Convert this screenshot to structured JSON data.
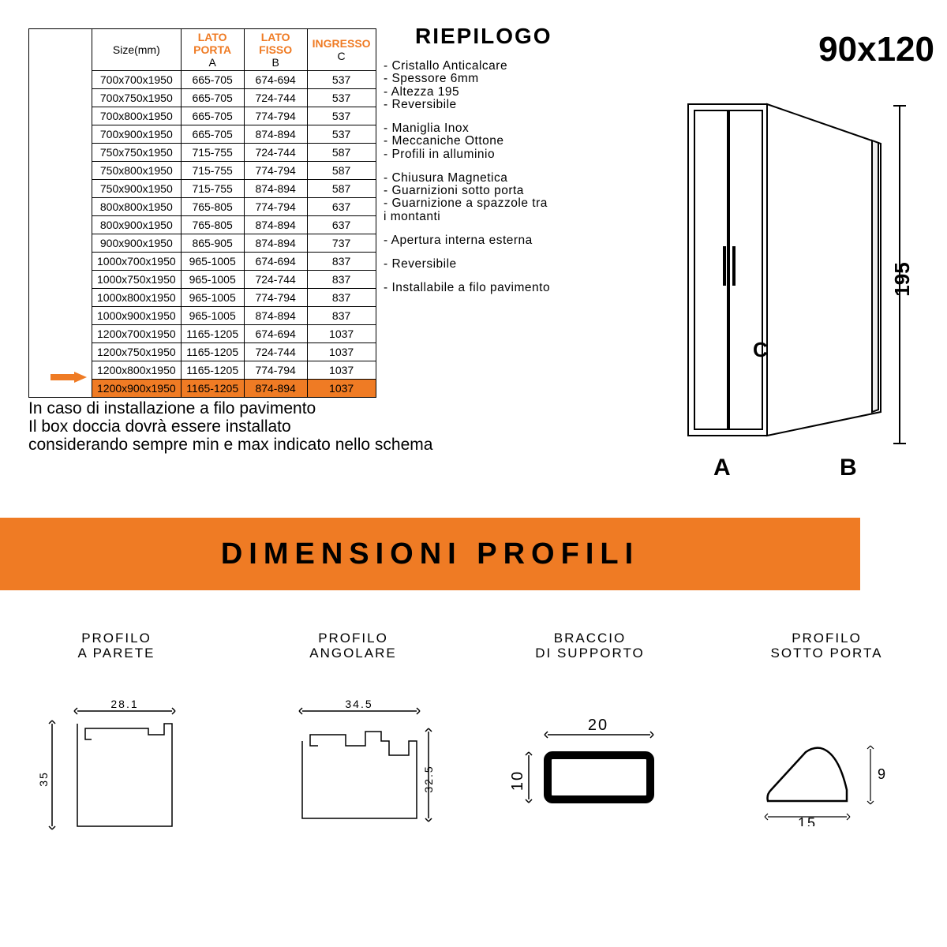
{
  "product_dimension": "90x120",
  "table": {
    "headers": {
      "size": "Size(mm)",
      "a_top": "LATO PORTA",
      "a_sub": "A",
      "b_top": "LATO FISSO",
      "b_sub": "B",
      "c_top": "INGRESSO",
      "c_sub": "C"
    },
    "rows": [
      {
        "size": "700x700x1950",
        "a": "665-705",
        "b": "674-694",
        "c": "537"
      },
      {
        "size": "700x750x1950",
        "a": "665-705",
        "b": "724-744",
        "c": "537"
      },
      {
        "size": "700x800x1950",
        "a": "665-705",
        "b": "774-794",
        "c": "537"
      },
      {
        "size": "700x900x1950",
        "a": "665-705",
        "b": "874-894",
        "c": "537"
      },
      {
        "size": "750x750x1950",
        "a": "715-755",
        "b": "724-744",
        "c": "587"
      },
      {
        "size": "750x800x1950",
        "a": "715-755",
        "b": "774-794",
        "c": "587"
      },
      {
        "size": "750x900x1950",
        "a": "715-755",
        "b": "874-894",
        "c": "587"
      },
      {
        "size": "800x800x1950",
        "a": "765-805",
        "b": "774-794",
        "c": "637"
      },
      {
        "size": "800x900x1950",
        "a": "765-805",
        "b": "874-894",
        "c": "637"
      },
      {
        "size": "900x900x1950",
        "a": "865-905",
        "b": "874-894",
        "c": "737"
      },
      {
        "size": "1000x700x1950",
        "a": "965-1005",
        "b": "674-694",
        "c": "837"
      },
      {
        "size": "1000x750x1950",
        "a": "965-1005",
        "b": "724-744",
        "c": "837"
      },
      {
        "size": "1000x800x1950",
        "a": "965-1005",
        "b": "774-794",
        "c": "837"
      },
      {
        "size": "1000x900x1950",
        "a": "965-1005",
        "b": "874-894",
        "c": "837"
      },
      {
        "size": "1200x700x1950",
        "a": "1165-1205",
        "b": "674-694",
        "c": "1037"
      },
      {
        "size": "1200x750x1950",
        "a": "1165-1205",
        "b": "724-744",
        "c": "1037"
      },
      {
        "size": "1200x800x1950",
        "a": "1165-1205",
        "b": "774-794",
        "c": "1037"
      },
      {
        "size": "1200x900x1950",
        "a": "1165-1205",
        "b": "874-894",
        "c": "1037"
      }
    ],
    "highlight_index": 17
  },
  "summary": {
    "title": "RIEPILOGO",
    "groups": [
      [
        "Cristallo Anticalcare",
        "Spessore 6mm",
        "Altezza 195",
        "Reversibile"
      ],
      [
        "Maniglia Inox",
        "Meccaniche Ottone",
        "Profili in alluminio"
      ],
      [
        "Chiusura Magnetica",
        "Guarnizioni sotto porta",
        "Guarnizione a spazzole tra"
      ],
      [
        "Apertura interna esterna"
      ],
      [
        "Reversibile"
      ],
      [
        "Installabile a filo pavimento"
      ]
    ],
    "extra_line": "i montanti"
  },
  "diagram": {
    "height_label": "195",
    "label_a": "A",
    "label_b": "B",
    "label_c": "C"
  },
  "footnote": [
    "In caso di installazione a filo pavimento",
    "Il box doccia dovrà essere installato",
    "considerando sempre min e max indicato nello schema"
  ],
  "banner": "DIMENSIONI PROFILI",
  "profiles": [
    {
      "label1": "PROFILO",
      "label2": "A PARETE",
      "w": "28.1",
      "h": "35"
    },
    {
      "label1": "PROFILO",
      "label2": "ANGOLARE",
      "w": "34.5",
      "h": "32.5"
    },
    {
      "label1": "BRACCIO",
      "label2": "DI SUPPORTO",
      "w": "20",
      "h": "10"
    },
    {
      "label1": "PROFILO",
      "label2": "SOTTO PORTA",
      "w": "15",
      "h": "9"
    }
  ],
  "colors": {
    "orange": "#ef7b24",
    "black": "#000000"
  }
}
